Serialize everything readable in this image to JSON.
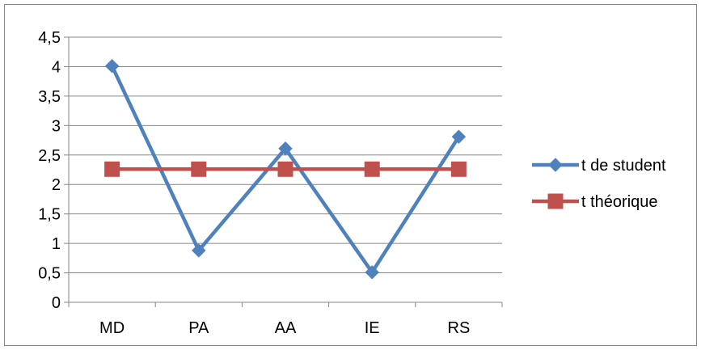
{
  "chart_data": {
    "type": "line",
    "title": "",
    "xlabel": "",
    "ylabel": "",
    "categories": [
      "MD",
      "PA",
      "AA",
      "IE",
      "RS"
    ],
    "ylim": [
      0,
      4.5
    ],
    "y_ticks": [
      0,
      0.5,
      1,
      1.5,
      2,
      2.5,
      3,
      3.5,
      4,
      4.5
    ],
    "y_tick_labels": [
      "0",
      "0,5",
      "1",
      "1,5",
      "2",
      "2,5",
      "3",
      "3,5",
      "4",
      "4,5"
    ],
    "grid": true,
    "legend_position": "right",
    "series": [
      {
        "name": "t de student",
        "values": [
          4.01,
          0.88,
          2.61,
          0.51,
          2.81
        ],
        "color": "#4f81bd",
        "marker": "diamond"
      },
      {
        "name": "t théorique",
        "values": [
          2.26,
          2.26,
          2.26,
          2.26,
          2.26
        ],
        "color": "#c0504d",
        "marker": "square"
      }
    ]
  }
}
